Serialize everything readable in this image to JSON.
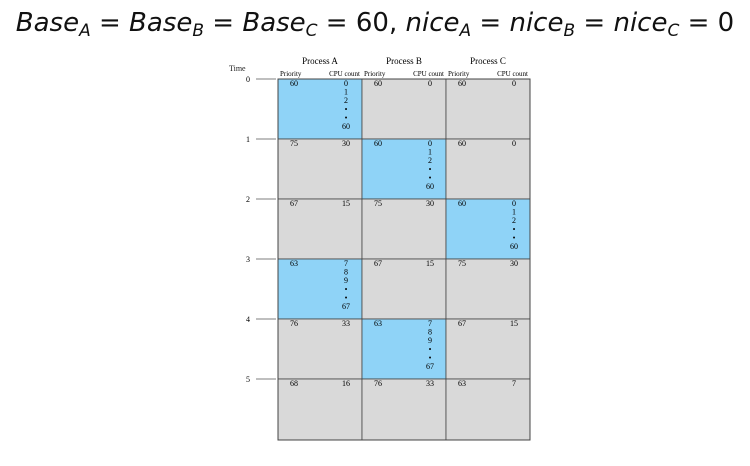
{
  "formula": {
    "base_word": "Base",
    "nice_word": "nice",
    "eq": "=",
    "value_60": "60",
    "comma": ",",
    "value_0": "0",
    "subs": [
      "A",
      "B",
      "C"
    ]
  },
  "diagram": {
    "time_label": "Time",
    "time_ticks": [
      "0",
      "1",
      "2",
      "3",
      "4",
      "5"
    ],
    "processes": [
      {
        "name": "Process A",
        "col1": "Priority",
        "col2": "CPU count"
      },
      {
        "name": "Process B",
        "col1": "Priority",
        "col2": "CPU count"
      },
      {
        "name": "Process C",
        "col1": "Priority",
        "col2": "CPU count"
      }
    ],
    "colors": {
      "active": "#8fd3f7",
      "idle": "#d9d9d9",
      "border": "#444444"
    },
    "cells": [
      [
        {
          "priority": "60",
          "cpu": [
            "0",
            "1",
            "2",
            "•",
            "•",
            "60"
          ],
          "active": true
        },
        {
          "priority": "60",
          "cpu": [
            "0"
          ],
          "active": false
        },
        {
          "priority": "60",
          "cpu": [
            "0"
          ],
          "active": false
        }
      ],
      [
        {
          "priority": "75",
          "cpu": [
            "30"
          ],
          "active": false
        },
        {
          "priority": "60",
          "cpu": [
            "0",
            "1",
            "2",
            "•",
            "•",
            "60"
          ],
          "active": true
        },
        {
          "priority": "60",
          "cpu": [
            "0"
          ],
          "active": false
        }
      ],
      [
        {
          "priority": "67",
          "cpu": [
            "15"
          ],
          "active": false
        },
        {
          "priority": "75",
          "cpu": [
            "30"
          ],
          "active": false
        },
        {
          "priority": "60",
          "cpu": [
            "0",
            "1",
            "2",
            "•",
            "•",
            "60"
          ],
          "active": true
        }
      ],
      [
        {
          "priority": "63",
          "cpu": [
            "7",
            "8",
            "9",
            "•",
            "•",
            "67"
          ],
          "active": true
        },
        {
          "priority": "67",
          "cpu": [
            "15"
          ],
          "active": false
        },
        {
          "priority": "75",
          "cpu": [
            "30"
          ],
          "active": false
        }
      ],
      [
        {
          "priority": "76",
          "cpu": [
            "33"
          ],
          "active": false
        },
        {
          "priority": "63",
          "cpu": [
            "7",
            "8",
            "9",
            "•",
            "•",
            "67"
          ],
          "active": true
        },
        {
          "priority": "67",
          "cpu": [
            "15"
          ],
          "active": false
        }
      ],
      [
        {
          "priority": "68",
          "cpu": [
            "16"
          ],
          "active": false
        },
        {
          "priority": "76",
          "cpu": [
            "33"
          ],
          "active": false
        },
        {
          "priority": "63",
          "cpu": [
            "7"
          ],
          "active": false
        }
      ]
    ]
  }
}
